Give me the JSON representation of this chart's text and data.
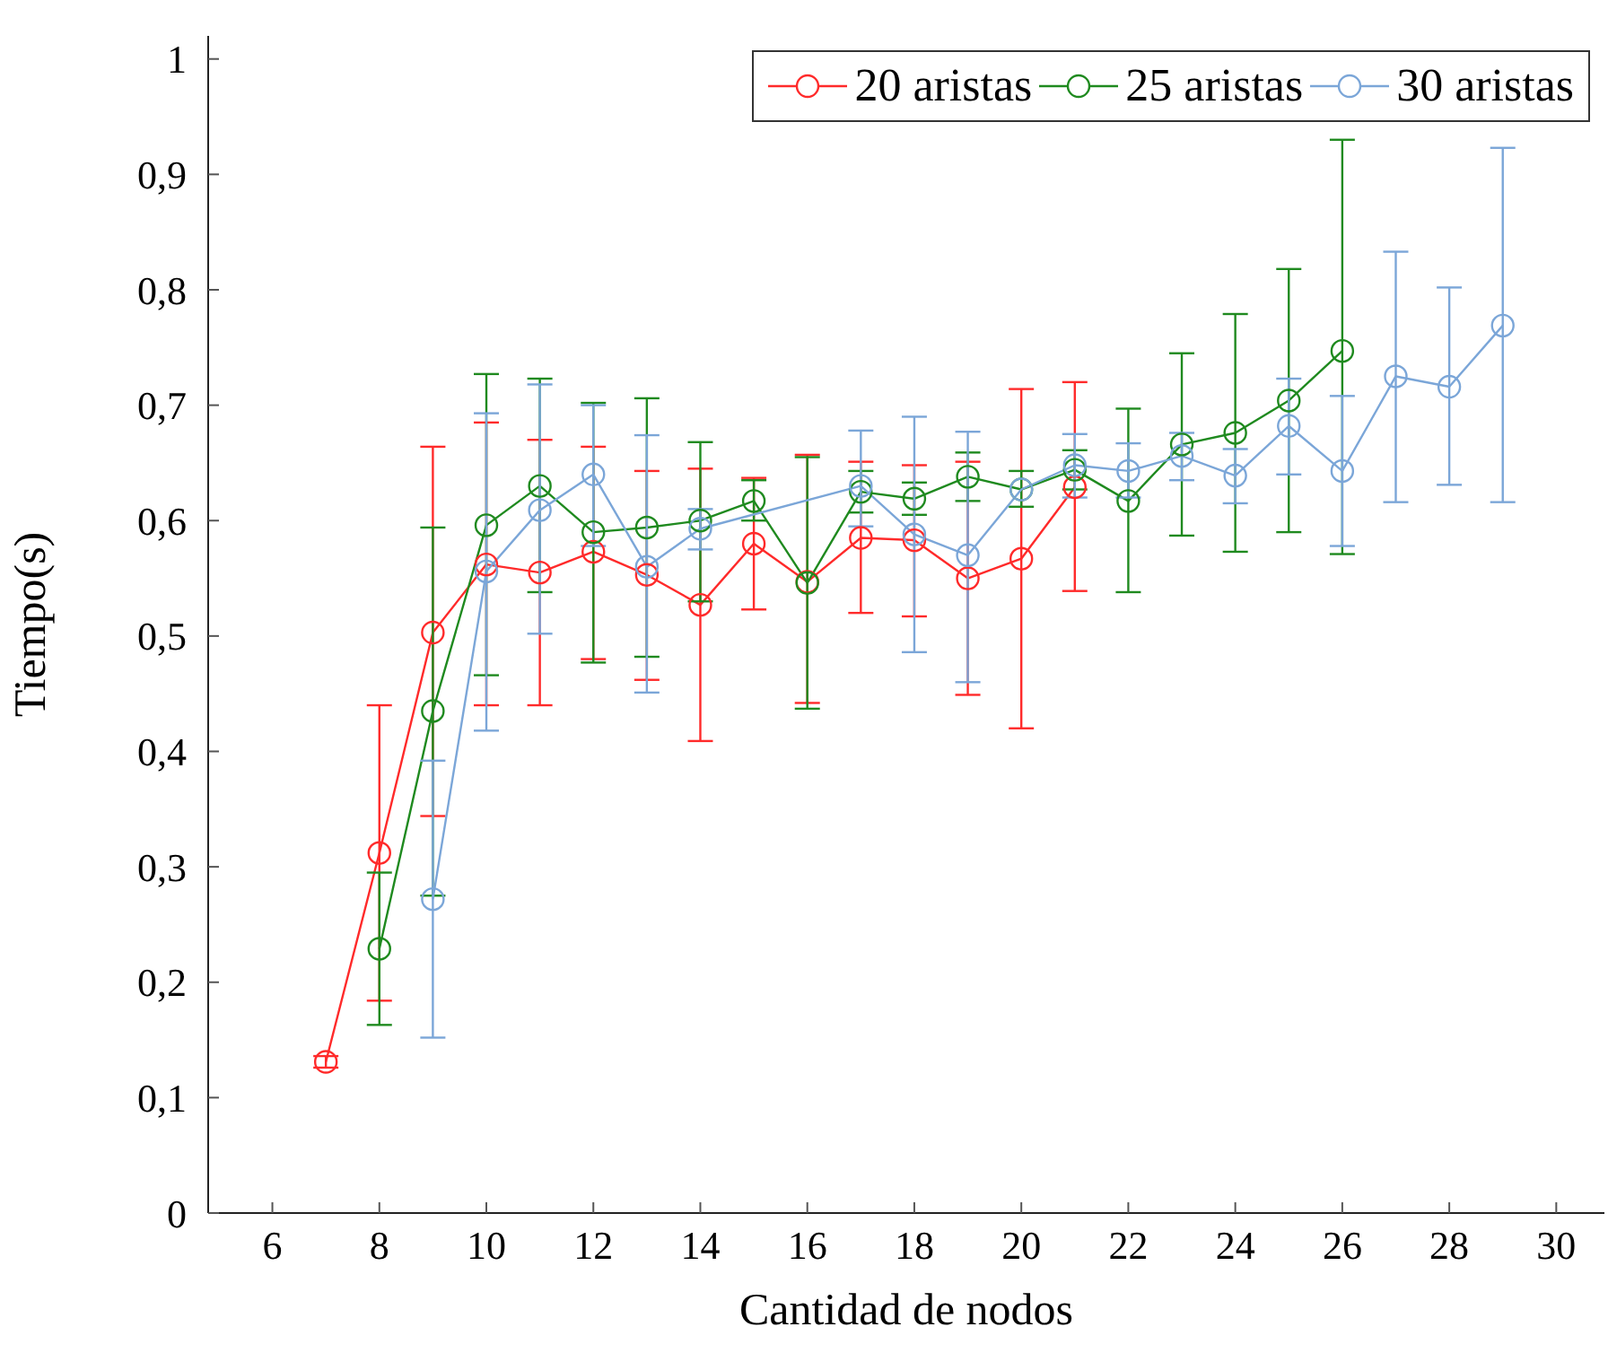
{
  "chart_data": {
    "type": "line",
    "xlabel": "Cantidad de nodos",
    "ylabel": "Tiempo(s)",
    "xlim": [
      4.8,
      30.9
    ],
    "xticks": [
      6,
      8,
      10,
      12,
      14,
      16,
      18,
      20,
      22,
      24,
      26,
      28,
      30
    ],
    "ylim": [
      0,
      1.02
    ],
    "yticks": [
      0,
      {
        "value": 0.1,
        "label": "0,1"
      },
      {
        "value": 0.2,
        "label": "0,2"
      },
      {
        "value": 0.3,
        "label": "0,3"
      },
      {
        "value": 0.4,
        "label": "0,4"
      },
      {
        "value": 0.5,
        "label": "0,5"
      },
      {
        "value": 0.6,
        "label": "0,6"
      },
      {
        "value": 0.7,
        "label": "0,7"
      },
      {
        "value": 0.8,
        "label": "0,8"
      },
      {
        "value": 0.9,
        "label": "0,9"
      },
      1
    ],
    "grid": false,
    "legend": "top right",
    "marker": "circle",
    "line_style": "solid",
    "series": [
      {
        "name": "20 aristas",
        "color": "#ff2a2a",
        "x": [
          7,
          8,
          9,
          10,
          11,
          12,
          13,
          14,
          15,
          16,
          17,
          18,
          19,
          20,
          21
        ],
        "values": [
          0.131,
          0.312,
          0.503,
          0.562,
          0.555,
          0.573,
          0.553,
          0.527,
          0.58,
          0.547,
          0.585,
          0.583,
          0.55,
          0.567,
          0.629
        ],
        "errors": [
          [
            0.126,
            0.136
          ],
          [
            0.184,
            0.44
          ],
          [
            0.344,
            0.664
          ],
          [
            0.44,
            0.685
          ],
          [
            0.44,
            0.67
          ],
          [
            0.48,
            0.664
          ],
          [
            0.462,
            0.643
          ],
          [
            0.409,
            0.645
          ],
          [
            0.523,
            0.637
          ],
          [
            0.442,
            0.657
          ],
          [
            0.52,
            0.651
          ],
          [
            0.517,
            0.648
          ],
          [
            0.449,
            0.651
          ],
          [
            0.42,
            0.714
          ],
          [
            0.539,
            0.72
          ]
        ]
      },
      {
        "name": "25 aristas",
        "color": "#1f8a1f",
        "x": [
          8,
          9,
          10,
          11,
          12,
          13,
          14,
          15,
          16,
          17,
          18,
          19,
          20,
          21,
          22,
          23,
          24,
          25,
          26
        ],
        "values": [
          0.229,
          0.435,
          0.596,
          0.63,
          0.59,
          0.594,
          0.6,
          0.617,
          0.546,
          0.625,
          0.619,
          0.638,
          0.627,
          0.644,
          0.617,
          0.666,
          0.676,
          0.704,
          0.747
        ],
        "errors": [
          [
            0.163,
            0.295
          ],
          [
            0.275,
            0.594
          ],
          [
            0.466,
            0.727
          ],
          [
            0.538,
            0.723
          ],
          [
            0.477,
            0.702
          ],
          [
            0.482,
            0.706
          ],
          [
            0.53,
            0.668
          ],
          [
            0.6,
            0.635
          ],
          [
            0.437,
            0.655
          ],
          [
            0.607,
            0.643
          ],
          [
            0.605,
            0.633
          ],
          [
            0.617,
            0.659
          ],
          [
            0.612,
            0.643
          ],
          [
            0.627,
            0.661
          ],
          [
            0.538,
            0.697
          ],
          [
            0.587,
            0.745
          ],
          [
            0.573,
            0.779
          ],
          [
            0.59,
            0.818
          ],
          [
            0.571,
            0.93
          ]
        ]
      },
      {
        "name": "30 aristas",
        "color": "#7ba6d8",
        "x": [
          9,
          10,
          11,
          12,
          13,
          14,
          17,
          18,
          19,
          20,
          21,
          22,
          23,
          24,
          25,
          26,
          27,
          28,
          29
        ],
        "values": [
          0.272,
          0.556,
          0.609,
          0.64,
          0.56,
          0.593,
          0.63,
          0.588,
          0.57,
          0.627,
          0.648,
          0.643,
          0.656,
          0.639,
          0.682,
          0.643,
          0.725,
          0.716,
          0.769
        ],
        "errors": [
          [
            0.152,
            0.392
          ],
          [
            0.418,
            0.693
          ],
          [
            0.502,
            0.718
          ],
          [
            0.578,
            0.7
          ],
          [
            0.451,
            0.674
          ],
          [
            0.575,
            0.61
          ],
          [
            0.595,
            0.678
          ],
          [
            0.486,
            0.69
          ],
          [
            0.46,
            0.677
          ],
          null,
          [
            0.62,
            0.675
          ],
          [
            0.62,
            0.667
          ],
          [
            0.635,
            0.676
          ],
          [
            0.615,
            0.662
          ],
          [
            0.64,
            0.723
          ],
          [
            0.578,
            0.708
          ],
          [
            0.616,
            0.833
          ],
          [
            0.631,
            0.802
          ],
          [
            0.616,
            0.923
          ]
        ]
      }
    ]
  }
}
